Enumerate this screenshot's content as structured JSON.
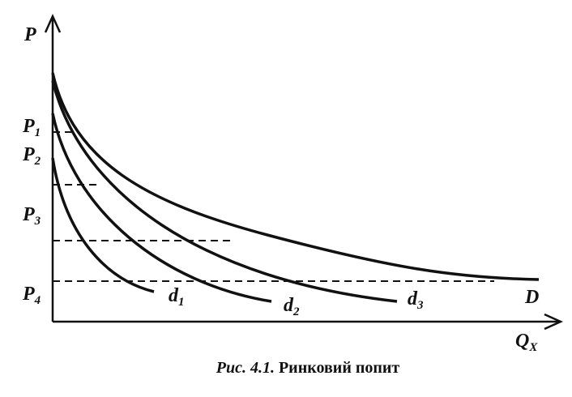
{
  "axes": {
    "y_label": "P",
    "x_label": {
      "main": "Q",
      "sub": "X"
    }
  },
  "price_labels": [
    {
      "main": "P",
      "sub": "1"
    },
    {
      "main": "P",
      "sub": "2"
    },
    {
      "main": "P",
      "sub": "3"
    },
    {
      "main": "P",
      "sub": "4"
    }
  ],
  "curve_labels": [
    {
      "main": "d",
      "sub": "1"
    },
    {
      "main": "d",
      "sub": "2"
    },
    {
      "main": "d",
      "sub": "3"
    },
    {
      "main": "D",
      "sub": ""
    }
  ],
  "caption": {
    "number": "Рис. 4.1.",
    "title": "Ринковий попит"
  }
}
